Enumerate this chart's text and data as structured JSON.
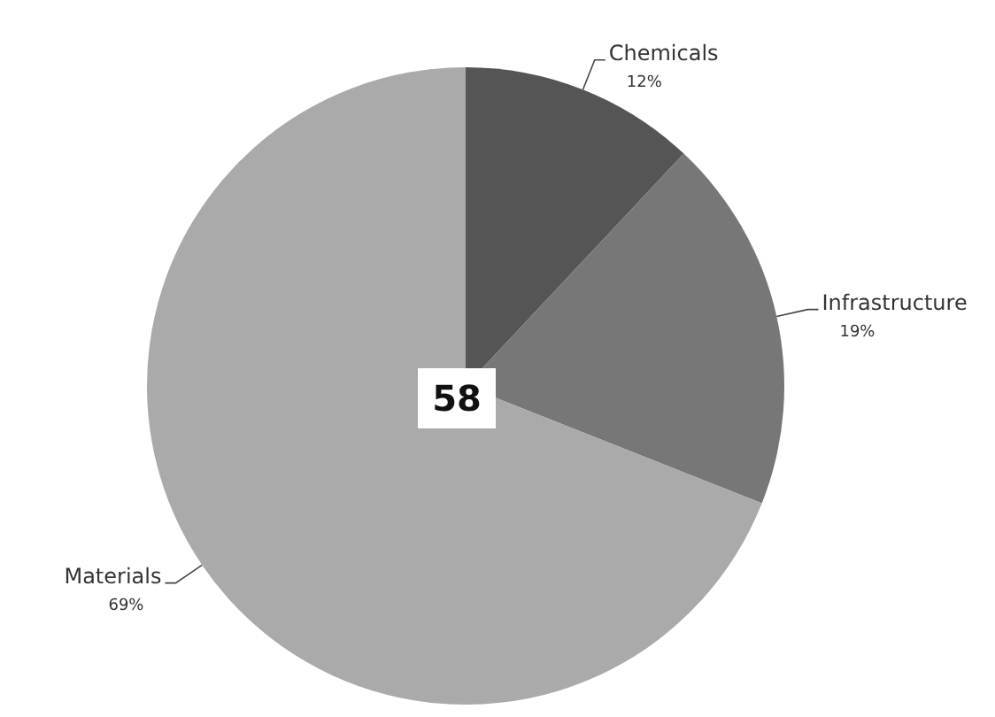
{
  "chart_data": {
    "type": "pie",
    "categories": [
      "Chemicals",
      "Infrastructure",
      "Materials"
    ],
    "values": [
      12,
      19,
      69
    ],
    "colors": [
      "#555555",
      "#777777",
      "#aaaaaa"
    ],
    "value_labels": [
      "12%",
      "19%",
      "69%"
    ],
    "annotations": [
      "58"
    ],
    "legend": false
  }
}
